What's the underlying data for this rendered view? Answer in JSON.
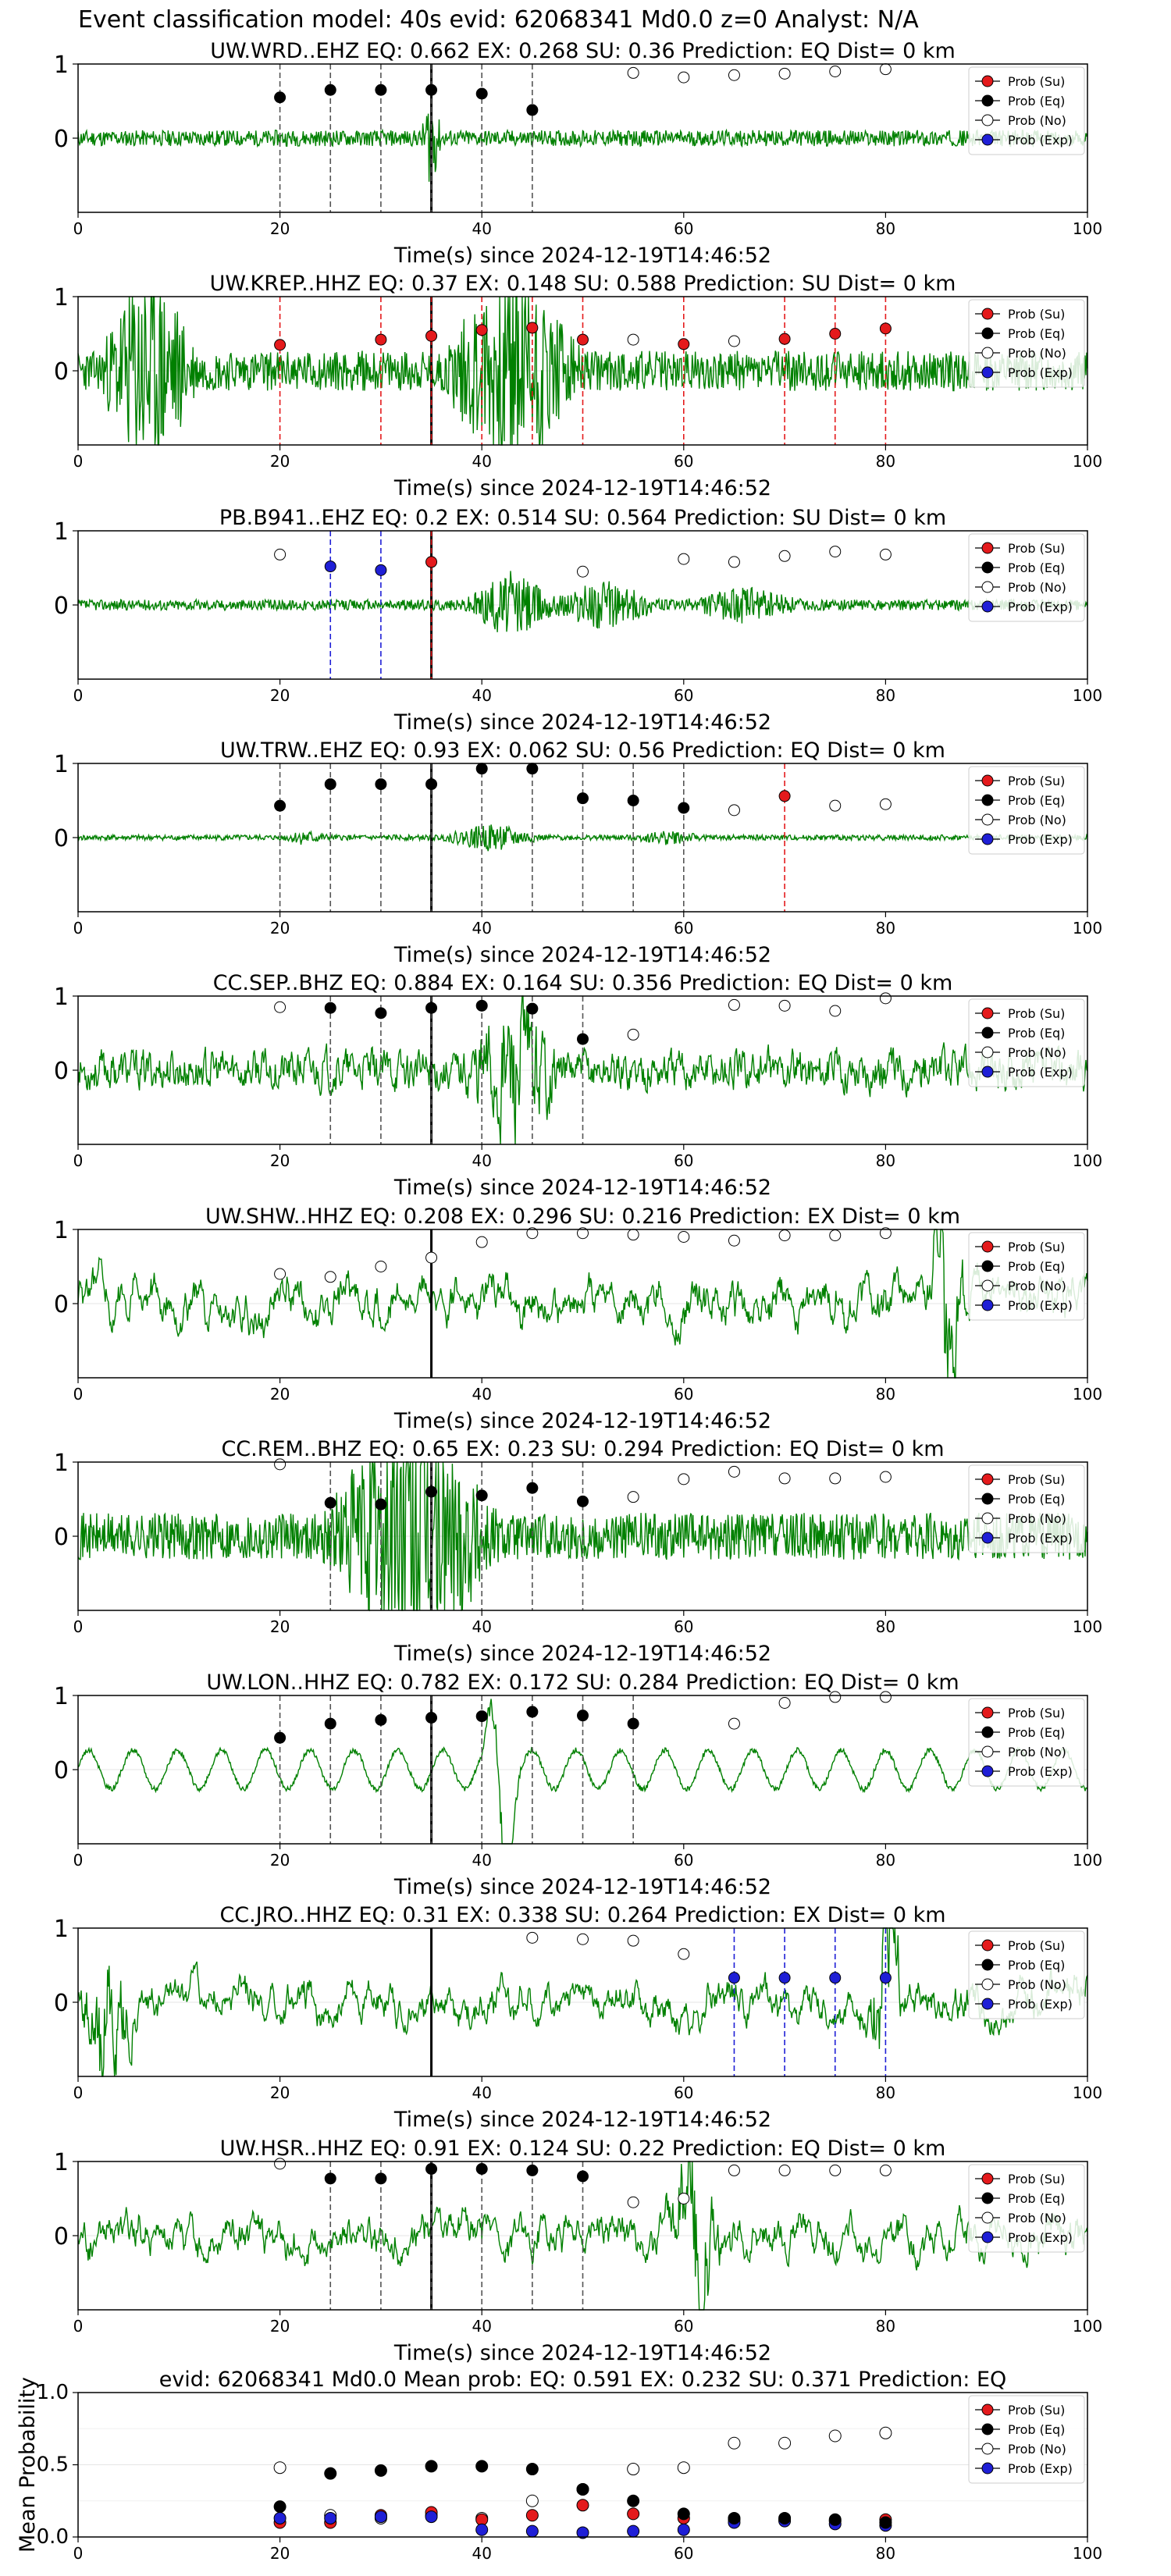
{
  "figure_title": "Event classification model: 40s evid: 62068341 Md0.0 z=0 Analyst: N/A",
  "colors": {
    "su": "#e41a1c",
    "eq": "#000000",
    "no": "#ffffff",
    "exp": "#1f1fd6",
    "trace": "#008000"
  },
  "legend_labels": [
    "Prob (Su)",
    "Prob (Eq)",
    "Prob (No)",
    "Prob (Exp)"
  ],
  "chart_data": [
    {
      "type": "line",
      "title": "UW.WRD..EHZ   EQ: 0.662  EX: 0.268  SU: 0.36   Prediction: EQ    Dist= 0 km",
      "xlabel": "Time(s) since 2024-12-19T14:46:52",
      "xlim": [
        0,
        100
      ],
      "ylim": [
        -1,
        1
      ],
      "xticks": [
        0,
        20,
        40,
        60,
        80,
        100
      ],
      "yticks": [
        0,
        1
      ],
      "trace": {
        "kind": "hf",
        "seed": 11,
        "amp": 0.12,
        "bursts": [
          [
            34,
            36,
            0.9
          ]
        ]
      },
      "windows": [
        {
          "t": 20,
          "p": 0.55,
          "c": "eq"
        },
        {
          "t": 25,
          "p": 0.65,
          "c": "eq"
        },
        {
          "t": 30,
          "p": 0.65,
          "c": "eq"
        },
        {
          "t": 35,
          "p": 0.65,
          "c": "eq"
        },
        {
          "t": 40,
          "p": 0.6,
          "c": "eq"
        },
        {
          "t": 45,
          "p": 0.38,
          "c": "eq"
        },
        {
          "t": 55,
          "p": 0.88,
          "c": "no"
        },
        {
          "t": 60,
          "p": 0.82,
          "c": "no"
        },
        {
          "t": 65,
          "p": 0.85,
          "c": "no"
        },
        {
          "t": 70,
          "p": 0.87,
          "c": "no"
        },
        {
          "t": 75,
          "p": 0.9,
          "c": "no"
        },
        {
          "t": 80,
          "p": 0.93,
          "c": "no"
        }
      ]
    },
    {
      "type": "line",
      "title": "UW.KREP..HHZ   EQ: 0.37  EX: 0.148  SU: 0.588   Prediction: SU    Dist= 0 km",
      "xlabel": "Time(s) since 2024-12-19T14:46:52",
      "xlim": [
        0,
        100
      ],
      "ylim": [
        -1,
        1
      ],
      "xticks": [
        0,
        20,
        40,
        60,
        80,
        100
      ],
      "yticks": [
        0,
        1
      ],
      "trace": {
        "kind": "hf",
        "seed": 23,
        "amp": 0.3,
        "bursts": [
          [
            2,
            12,
            0.8
          ],
          [
            36,
            50,
            0.8
          ]
        ]
      },
      "windows": [
        {
          "t": 20,
          "p": 0.35,
          "c": "su"
        },
        {
          "t": 30,
          "p": 0.42,
          "c": "su"
        },
        {
          "t": 35,
          "p": 0.47,
          "c": "su"
        },
        {
          "t": 40,
          "p": 0.55,
          "c": "su"
        },
        {
          "t": 45,
          "p": 0.58,
          "c": "su"
        },
        {
          "t": 50,
          "p": 0.42,
          "c": "su"
        },
        {
          "t": 55,
          "p": 0.42,
          "c": "no"
        },
        {
          "t": 60,
          "p": 0.36,
          "c": "su"
        },
        {
          "t": 65,
          "p": 0.4,
          "c": "no"
        },
        {
          "t": 70,
          "p": 0.43,
          "c": "su"
        },
        {
          "t": 75,
          "p": 0.5,
          "c": "su"
        },
        {
          "t": 80,
          "p": 0.57,
          "c": "su"
        }
      ]
    },
    {
      "type": "line",
      "title": "PB.B941..EHZ   EQ: 0.2  EX: 0.514  SU: 0.564   Prediction: SU    Dist= 0 km",
      "xlabel": "Time(s) since 2024-12-19T14:46:52",
      "xlim": [
        0,
        100
      ],
      "ylim": [
        -1,
        1
      ],
      "xticks": [
        0,
        20,
        40,
        60,
        80,
        100
      ],
      "yticks": [
        0,
        1
      ],
      "trace": {
        "kind": "hf",
        "seed": 37,
        "amp": 0.08,
        "bursts": [
          [
            38,
            48,
            0.9
          ],
          [
            46,
            58,
            0.6
          ],
          [
            60,
            72,
            0.4
          ]
        ]
      },
      "windows": [
        {
          "t": 20,
          "p": 0.68,
          "c": "no"
        },
        {
          "t": 25,
          "p": 0.52,
          "c": "exp"
        },
        {
          "t": 30,
          "p": 0.47,
          "c": "exp"
        },
        {
          "t": 35,
          "p": 0.58,
          "c": "su"
        },
        {
          "t": 50,
          "p": 0.45,
          "c": "no"
        },
        {
          "t": 60,
          "p": 0.62,
          "c": "no"
        },
        {
          "t": 65,
          "p": 0.58,
          "c": "no"
        },
        {
          "t": 70,
          "p": 0.66,
          "c": "no"
        },
        {
          "t": 75,
          "p": 0.72,
          "c": "no"
        },
        {
          "t": 80,
          "p": 0.68,
          "c": "no"
        }
      ]
    },
    {
      "type": "line",
      "title": "UW.TRW..EHZ   EQ: 0.93  EX: 0.062  SU: 0.56   Prediction: EQ    Dist= 0 km",
      "xlabel": "Time(s) since 2024-12-19T14:46:52",
      "xlim": [
        0,
        100
      ],
      "ylim": [
        -1,
        1
      ],
      "xticks": [
        0,
        20,
        40,
        60,
        80,
        100
      ],
      "yticks": [
        0,
        1
      ],
      "trace": {
        "kind": "hf",
        "seed": 41,
        "amp": 0.04,
        "bursts": [
          [
            20,
            25,
            0.3
          ],
          [
            36,
            46,
            0.7
          ],
          [
            55,
            62,
            0.3
          ]
        ]
      },
      "windows": [
        {
          "t": 20,
          "p": 0.43,
          "c": "eq"
        },
        {
          "t": 25,
          "p": 0.72,
          "c": "eq"
        },
        {
          "t": 30,
          "p": 0.72,
          "c": "eq"
        },
        {
          "t": 35,
          "p": 0.72,
          "c": "eq"
        },
        {
          "t": 40,
          "p": 0.93,
          "c": "eq"
        },
        {
          "t": 45,
          "p": 0.93,
          "c": "eq"
        },
        {
          "t": 50,
          "p": 0.53,
          "c": "eq"
        },
        {
          "t": 55,
          "p": 0.5,
          "c": "eq"
        },
        {
          "t": 60,
          "p": 0.4,
          "c": "eq"
        },
        {
          "t": 65,
          "p": 0.37,
          "c": "no"
        },
        {
          "t": 70,
          "p": 0.56,
          "c": "su"
        },
        {
          "t": 75,
          "p": 0.43,
          "c": "no"
        },
        {
          "t": 80,
          "p": 0.45,
          "c": "no"
        }
      ]
    },
    {
      "type": "line",
      "title": "CC.SEP..BHZ   EQ: 0.884  EX: 0.164  SU: 0.356   Prediction: EQ    Dist= 0 km",
      "xlabel": "Time(s) since 2024-12-19T14:46:52",
      "xlim": [
        0,
        100
      ],
      "ylim": [
        -1,
        1
      ],
      "xticks": [
        0,
        20,
        40,
        60,
        80,
        100
      ],
      "yticks": [
        0,
        1
      ],
      "trace": {
        "kind": "mf",
        "seed": 53,
        "amp": 0.35,
        "bursts": [
          [
            38,
            48,
            0.5
          ]
        ]
      },
      "windows": [
        {
          "t": 20,
          "p": 0.85,
          "c": "no"
        },
        {
          "t": 25,
          "p": 0.84,
          "c": "eq"
        },
        {
          "t": 30,
          "p": 0.77,
          "c": "eq"
        },
        {
          "t": 35,
          "p": 0.84,
          "c": "eq"
        },
        {
          "t": 40,
          "p": 0.87,
          "c": "eq"
        },
        {
          "t": 45,
          "p": 0.83,
          "c": "eq"
        },
        {
          "t": 50,
          "p": 0.42,
          "c": "eq"
        },
        {
          "t": 55,
          "p": 0.48,
          "c": "no"
        },
        {
          "t": 65,
          "p": 0.88,
          "c": "no"
        },
        {
          "t": 70,
          "p": 0.87,
          "c": "no"
        },
        {
          "t": 75,
          "p": 0.8,
          "c": "no"
        },
        {
          "t": 80,
          "p": 0.97,
          "c": "no"
        }
      ]
    },
    {
      "type": "line",
      "title": "UW.SHW..HHZ   EQ: 0.208  EX: 0.296  SU: 0.216   Prediction: EX    Dist= 0 km",
      "xlabel": "Time(s) since 2024-12-19T14:46:52",
      "xlim": [
        0,
        100
      ],
      "ylim": [
        -1,
        1
      ],
      "xticks": [
        0,
        20,
        40,
        60,
        80,
        100
      ],
      "yticks": [
        0,
        1
      ],
      "trace": {
        "kind": "lf",
        "seed": 61,
        "amp": 0.5,
        "bursts": [
          [
            84,
            88,
            0.7
          ]
        ]
      },
      "windows": [
        {
          "t": 20,
          "p": 0.4,
          "c": "no"
        },
        {
          "t": 25,
          "p": 0.36,
          "c": "no"
        },
        {
          "t": 30,
          "p": 0.5,
          "c": "no"
        },
        {
          "t": 35,
          "p": 0.62,
          "c": "no"
        },
        {
          "t": 40,
          "p": 0.83,
          "c": "no"
        },
        {
          "t": 45,
          "p": 0.95,
          "c": "no"
        },
        {
          "t": 50,
          "p": 0.95,
          "c": "no"
        },
        {
          "t": 55,
          "p": 0.93,
          "c": "no"
        },
        {
          "t": 60,
          "p": 0.9,
          "c": "no"
        },
        {
          "t": 65,
          "p": 0.85,
          "c": "no"
        },
        {
          "t": 70,
          "p": 0.92,
          "c": "no"
        },
        {
          "t": 75,
          "p": 0.92,
          "c": "no"
        },
        {
          "t": 80,
          "p": 0.95,
          "c": "no"
        }
      ]
    },
    {
      "type": "line",
      "title": "CC.REM..BHZ   EQ: 0.65  EX: 0.23  SU: 0.294   Prediction: EQ    Dist= 0 km",
      "xlabel": "Time(s) since 2024-12-19T14:46:52",
      "xlim": [
        0,
        100
      ],
      "ylim": [
        -1,
        1
      ],
      "xticks": [
        0,
        20,
        40,
        60,
        80,
        100
      ],
      "yticks": [
        0,
        1
      ],
      "trace": {
        "kind": "hf",
        "seed": 71,
        "amp": 0.35,
        "bursts": [
          [
            24,
            42,
            0.8
          ]
        ]
      },
      "windows": [
        {
          "t": 20,
          "p": 0.97,
          "c": "no"
        },
        {
          "t": 25,
          "p": 0.45,
          "c": "eq"
        },
        {
          "t": 30,
          "p": 0.43,
          "c": "eq"
        },
        {
          "t": 35,
          "p": 0.6,
          "c": "eq"
        },
        {
          "t": 40,
          "p": 0.55,
          "c": "eq"
        },
        {
          "t": 45,
          "p": 0.65,
          "c": "eq"
        },
        {
          "t": 50,
          "p": 0.47,
          "c": "eq"
        },
        {
          "t": 55,
          "p": 0.53,
          "c": "no"
        },
        {
          "t": 60,
          "p": 0.77,
          "c": "no"
        },
        {
          "t": 65,
          "p": 0.87,
          "c": "no"
        },
        {
          "t": 70,
          "p": 0.78,
          "c": "no"
        },
        {
          "t": 75,
          "p": 0.78,
          "c": "no"
        },
        {
          "t": 80,
          "p": 0.8,
          "c": "no"
        }
      ]
    },
    {
      "type": "line",
      "title": "UW.LON..HHZ   EQ: 0.782  EX: 0.172  SU: 0.284   Prediction: EQ    Dist= 0 km",
      "xlabel": "Time(s) since 2024-12-19T14:46:52",
      "xlim": [
        0,
        100
      ],
      "ylim": [
        -1,
        1
      ],
      "xticks": [
        0,
        20,
        40,
        60,
        80,
        100
      ],
      "yticks": [
        0,
        1
      ],
      "trace": {
        "kind": "osc",
        "seed": 83,
        "amp": 0.35,
        "bursts": [
          [
            40,
            44,
            0.9
          ]
        ]
      },
      "windows": [
        {
          "t": 20,
          "p": 0.43,
          "c": "eq"
        },
        {
          "t": 25,
          "p": 0.62,
          "c": "eq"
        },
        {
          "t": 30,
          "p": 0.67,
          "c": "eq"
        },
        {
          "t": 35,
          "p": 0.7,
          "c": "eq"
        },
        {
          "t": 40,
          "p": 0.72,
          "c": "eq"
        },
        {
          "t": 45,
          "p": 0.78,
          "c": "eq"
        },
        {
          "t": 50,
          "p": 0.73,
          "c": "eq"
        },
        {
          "t": 55,
          "p": 0.62,
          "c": "eq"
        },
        {
          "t": 65,
          "p": 0.62,
          "c": "no"
        },
        {
          "t": 70,
          "p": 0.9,
          "c": "no"
        },
        {
          "t": 75,
          "p": 0.98,
          "c": "no"
        },
        {
          "t": 80,
          "p": 0.98,
          "c": "no"
        }
      ]
    },
    {
      "type": "line",
      "title": "CC.JRO..HHZ   EQ: 0.31  EX: 0.338  SU: 0.264   Prediction: EX    Dist= 0 km",
      "xlabel": "Time(s) since 2024-12-19T14:46:52",
      "xlim": [
        0,
        100
      ],
      "ylim": [
        -1,
        1
      ],
      "xticks": [
        0,
        20,
        40,
        60,
        80,
        100
      ],
      "yticks": [
        0,
        1
      ],
      "trace": {
        "kind": "lf",
        "seed": 97,
        "amp": 0.45,
        "bursts": [
          [
            0,
            6,
            0.6
          ],
          [
            78,
            82,
            0.9
          ]
        ]
      },
      "windows": [
        {
          "t": 45,
          "p": 0.87,
          "c": "no"
        },
        {
          "t": 50,
          "p": 0.85,
          "c": "no"
        },
        {
          "t": 55,
          "p": 0.83,
          "c": "no"
        },
        {
          "t": 60,
          "p": 0.65,
          "c": "no"
        },
        {
          "t": 65,
          "p": 0.33,
          "c": "exp"
        },
        {
          "t": 70,
          "p": 0.33,
          "c": "exp"
        },
        {
          "t": 75,
          "p": 0.33,
          "c": "exp"
        },
        {
          "t": 80,
          "p": 0.33,
          "c": "exp"
        }
      ]
    },
    {
      "type": "line",
      "title": "UW.HSR..HHZ   EQ: 0.91  EX: 0.124  SU: 0.22   Prediction: EQ    Dist= 0 km",
      "xlabel": "Time(s) since 2024-12-19T14:46:52",
      "xlim": [
        0,
        100
      ],
      "ylim": [
        -1,
        1
      ],
      "xticks": [
        0,
        20,
        40,
        60,
        80,
        100
      ],
      "yticks": [
        0,
        1
      ],
      "trace": {
        "kind": "lf",
        "seed": 101,
        "amp": 0.45,
        "bursts": [
          [
            58,
            64,
            0.7
          ]
        ]
      },
      "windows": [
        {
          "t": 20,
          "p": 0.97,
          "c": "no"
        },
        {
          "t": 25,
          "p": 0.77,
          "c": "eq"
        },
        {
          "t": 30,
          "p": 0.77,
          "c": "eq"
        },
        {
          "t": 35,
          "p": 0.9,
          "c": "eq"
        },
        {
          "t": 40,
          "p": 0.9,
          "c": "eq"
        },
        {
          "t": 45,
          "p": 0.88,
          "c": "eq"
        },
        {
          "t": 50,
          "p": 0.8,
          "c": "eq"
        },
        {
          "t": 55,
          "p": 0.45,
          "c": "no"
        },
        {
          "t": 60,
          "p": 0.5,
          "c": "no"
        },
        {
          "t": 65,
          "p": 0.88,
          "c": "no"
        },
        {
          "t": 70,
          "p": 0.88,
          "c": "no"
        },
        {
          "t": 75,
          "p": 0.88,
          "c": "no"
        },
        {
          "t": 80,
          "p": 0.88,
          "c": "no"
        }
      ]
    },
    {
      "type": "scatter",
      "title": "evid: 62068341  Md0.0   Mean prob:   EQ: 0.591  EX: 0.232  SU: 0.371   Prediction: EQ",
      "xlabel": "",
      "ylabel": "Mean Probability",
      "xlim": [
        0,
        100
      ],
      "ylim": [
        0,
        1
      ],
      "xticks": [
        0,
        20,
        40,
        60,
        80,
        100
      ],
      "yticks": [
        0,
        0.5,
        1
      ],
      "ytick_labels": [
        "0.0",
        "0.5",
        "1.0"
      ],
      "x": [
        20,
        25,
        30,
        35,
        40,
        45,
        50,
        55,
        60,
        65,
        70,
        75,
        80
      ],
      "series": [
        {
          "name": "Prob (No)",
          "c": "no",
          "values": [
            0.48,
            0.15,
            0.13,
            0.15,
            0.13,
            0.25,
            0.33,
            0.47,
            0.48,
            0.65,
            0.65,
            0.7,
            0.72
          ]
        },
        {
          "name": "Prob (Su)",
          "c": "su",
          "values": [
            0.1,
            0.1,
            0.15,
            0.17,
            0.12,
            0.15,
            0.22,
            0.16,
            0.13,
            0.12,
            0.12,
            0.11,
            0.12
          ]
        },
        {
          "name": "Prob (Exp)",
          "c": "exp",
          "values": [
            0.13,
            0.13,
            0.14,
            0.14,
            0.05,
            0.04,
            0.03,
            0.04,
            0.05,
            0.1,
            0.11,
            0.09,
            0.08
          ]
        },
        {
          "name": "Prob (Eq)",
          "c": "eq",
          "values": [
            0.21,
            0.44,
            0.46,
            0.49,
            0.49,
            0.47,
            0.33,
            0.25,
            0.16,
            0.13,
            0.13,
            0.12,
            0.1
          ]
        }
      ]
    }
  ]
}
